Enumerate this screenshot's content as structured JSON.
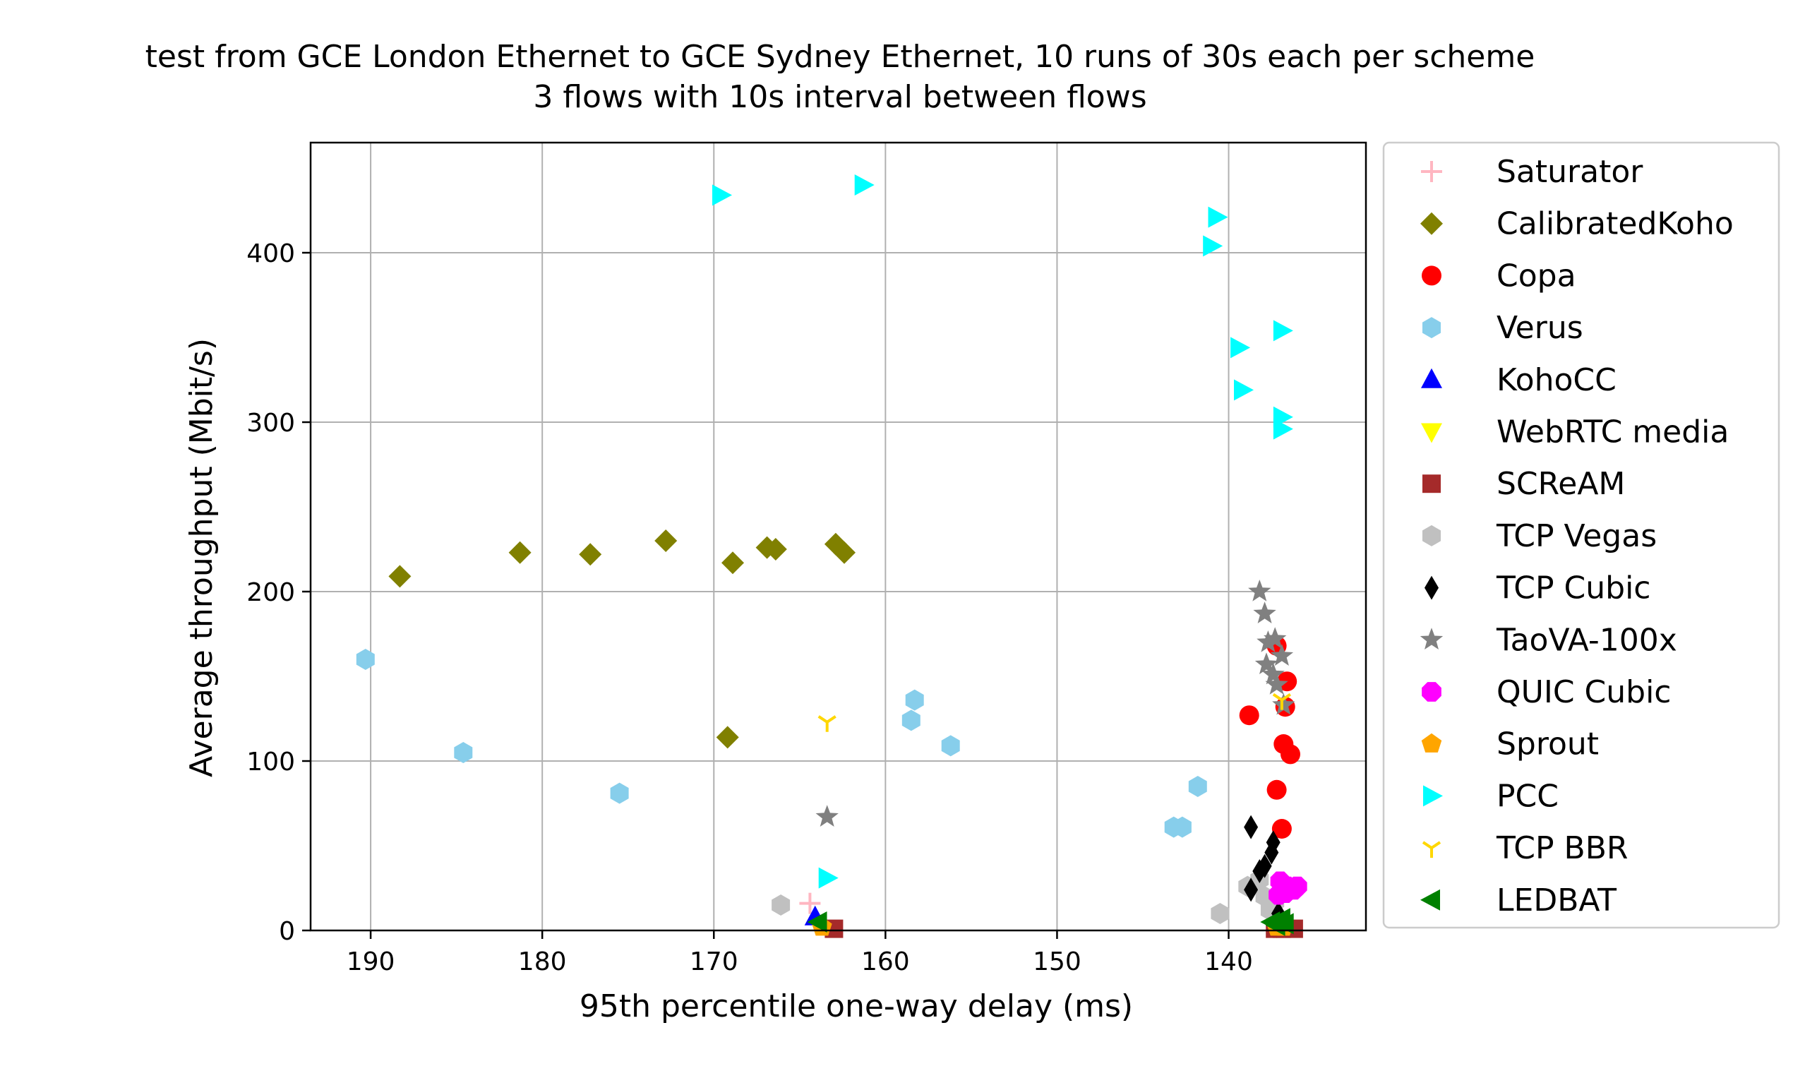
{
  "chart_data": {
    "type": "scatter",
    "title": "test from GCE London Ethernet to GCE Sydney Ethernet, 10 runs of 30s each per scheme",
    "subtitle": "3 flows with 10s interval between flows",
    "xlabel": "95th percentile one-way delay (ms)",
    "ylabel": "Average throughput (Mbit/s)",
    "xlim": [
      193.5,
      132
    ],
    "ylim": [
      0,
      465
    ],
    "x_inverted": true,
    "xticks": [
      190,
      180,
      170,
      160,
      150,
      140
    ],
    "yticks": [
      0,
      100,
      200,
      300,
      400
    ],
    "grid": true,
    "legend_position": "outside-right",
    "series": [
      {
        "name": "Saturator",
        "marker": "plus",
        "color": "#ffb6c1",
        "points": [
          [
            164.4,
            16
          ]
        ]
      },
      {
        "name": "CalibratedKoho",
        "marker": "diamond",
        "color": "#808000",
        "points": [
          [
            188.3,
            209
          ],
          [
            181.3,
            223
          ],
          [
            177.2,
            222
          ],
          [
            172.8,
            230
          ],
          [
            168.9,
            217
          ],
          [
            166.9,
            226
          ],
          [
            166.4,
            225
          ],
          [
            162.9,
            228
          ],
          [
            162.4,
            223
          ],
          [
            169.2,
            114
          ]
        ]
      },
      {
        "name": "Copa",
        "marker": "circle",
        "color": "#ff0000",
        "points": [
          [
            138.8,
            127
          ],
          [
            137.2,
            168
          ],
          [
            136.6,
            147
          ],
          [
            136.7,
            132
          ],
          [
            136.8,
            110
          ],
          [
            136.4,
            104
          ],
          [
            137.2,
            83
          ],
          [
            136.9,
            60
          ]
        ]
      },
      {
        "name": "Verus",
        "marker": "hexagon",
        "color": "#87ceeb",
        "points": [
          [
            190.3,
            160
          ],
          [
            184.6,
            105
          ],
          [
            175.5,
            81
          ],
          [
            158.3,
            136
          ],
          [
            158.5,
            124
          ],
          [
            156.2,
            109
          ],
          [
            141.8,
            85
          ],
          [
            143.2,
            61
          ],
          [
            142.7,
            61
          ]
        ]
      },
      {
        "name": "KohoCC",
        "marker": "triangle-up",
        "color": "#0000ff",
        "points": [
          [
            164.1,
            8
          ]
        ]
      },
      {
        "name": "WebRTC media",
        "marker": "triangle-down",
        "color": "#ffff00",
        "points": [
          [
            136.9,
            3
          ],
          [
            137.2,
            2
          ]
        ]
      },
      {
        "name": "SCReAM",
        "marker": "square",
        "color": "#a52a2a",
        "points": [
          [
            163.0,
            1
          ],
          [
            137.3,
            1
          ],
          [
            136.2,
            1
          ],
          [
            136.9,
            1
          ]
        ]
      },
      {
        "name": "TCP Vegas",
        "marker": "hexagon",
        "color": "#c0c0c0",
        "points": [
          [
            166.1,
            15
          ],
          [
            140.5,
            10
          ],
          [
            138.9,
            26
          ],
          [
            138.2,
            30
          ],
          [
            137.9,
            20
          ],
          [
            137.6,
            12
          ],
          [
            137.3,
            17
          ]
        ]
      },
      {
        "name": "TCP Cubic",
        "marker": "thin-diamond",
        "color": "#000000",
        "points": [
          [
            138.7,
            61
          ],
          [
            137.4,
            52
          ],
          [
            137.5,
            46
          ],
          [
            137.9,
            38
          ],
          [
            138.2,
            35
          ],
          [
            138.7,
            24
          ],
          [
            137.1,
            10
          ],
          [
            137.0,
            7
          ]
        ]
      },
      {
        "name": "TaoVA-100x",
        "marker": "star",
        "color": "#808080",
        "points": [
          [
            163.4,
            67
          ],
          [
            138.2,
            200
          ],
          [
            137.9,
            187
          ],
          [
            137.3,
            172
          ],
          [
            137.7,
            170
          ],
          [
            136.9,
            162
          ],
          [
            137.8,
            157
          ],
          [
            137.4,
            151
          ],
          [
            137.2,
            145
          ],
          [
            136.8,
            133
          ]
        ]
      },
      {
        "name": "QUIC Cubic",
        "marker": "octagon",
        "color": "#ff00ff",
        "points": [
          [
            137.0,
            29
          ],
          [
            136.6,
            26
          ],
          [
            136.4,
            25
          ],
          [
            136.0,
            26
          ],
          [
            137.1,
            21
          ],
          [
            136.7,
            22
          ],
          [
            136.2,
            24
          ]
        ]
      },
      {
        "name": "Sprout",
        "marker": "pentagon",
        "color": "#ffa500",
        "points": [
          [
            163.7,
            2
          ],
          [
            137.2,
            2
          ],
          [
            136.8,
            2
          ]
        ]
      },
      {
        "name": "PCC",
        "marker": "triangle-right",
        "color": "#00ffff",
        "points": [
          [
            169.6,
            434
          ],
          [
            161.3,
            440
          ],
          [
            140.7,
            421
          ],
          [
            141.0,
            404
          ],
          [
            139.4,
            344
          ],
          [
            136.9,
            354
          ],
          [
            139.2,
            319
          ],
          [
            136.9,
            303
          ],
          [
            136.9,
            296
          ],
          [
            163.4,
            31
          ]
        ]
      },
      {
        "name": "TCP BBR",
        "marker": "tri-down",
        "color": "#ffd700",
        "points": [
          [
            163.4,
            123
          ],
          [
            136.9,
            136
          ]
        ]
      },
      {
        "name": "LEDBAT",
        "marker": "triangle-left",
        "color": "#008000",
        "points": [
          [
            163.9,
            5
          ],
          [
            137.5,
            5
          ],
          [
            136.9,
            7
          ],
          [
            137.2,
            3
          ],
          [
            136.7,
            4
          ]
        ]
      }
    ]
  }
}
